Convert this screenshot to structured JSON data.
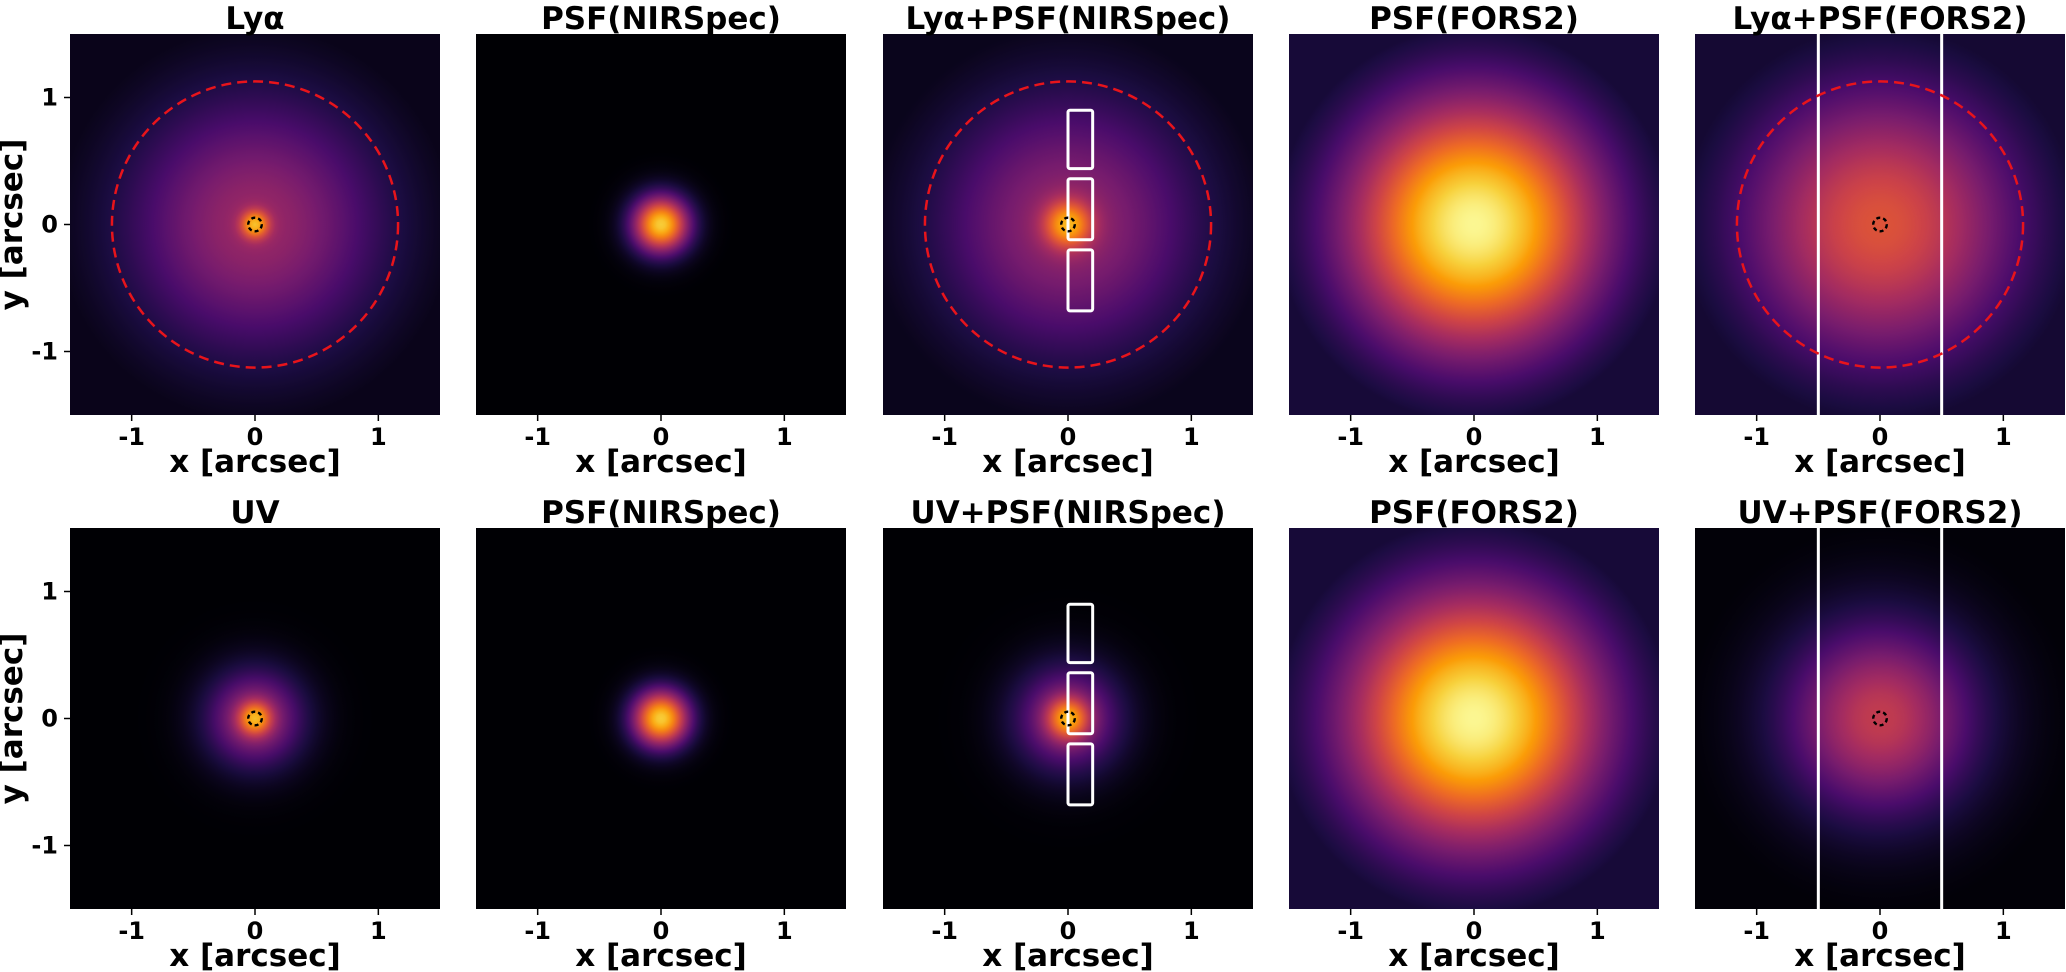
{
  "chart_data": {
    "type": "heatmap",
    "layout": {
      "rows": 2,
      "cols": 5
    },
    "colormap": "inferno",
    "colormap_stops": [
      "#000004",
      "#1b0c41",
      "#4a0c6b",
      "#781c6d",
      "#a52c60",
      "#cf4446",
      "#ed6925",
      "#fb9b06",
      "#f7d13d",
      "#fcffa4"
    ],
    "xlabel": "x [arcsec]",
    "ylabel": "y [arcsec]",
    "xlim": [
      -1.5,
      1.5
    ],
    "ylim": [
      -1.5,
      1.5
    ],
    "xticks": [
      -1,
      0,
      1
    ],
    "xtick_labels": [
      "-1",
      "0",
      "1"
    ],
    "yticks": [
      -1,
      0,
      1
    ],
    "ytick_labels": [
      "-1",
      "0",
      "1"
    ],
    "panels": [
      {
        "title": "Lyα",
        "components": [
          {
            "sigma": 0.07,
            "weight": 1.0
          },
          {
            "sigma": 0.55,
            "weight": 0.36
          }
        ],
        "peak_level": 0.86,
        "circles": [
          {
            "r": 1.16,
            "style": "dashed",
            "color": "#e8141b"
          },
          {
            "r": 0.055,
            "style": "dashed",
            "color": "#000000"
          }
        ]
      },
      {
        "title": "PSF(NIRSpec)",
        "components": [
          {
            "sigma": 0.12,
            "weight": 1.0
          }
        ],
        "peak_level": 0.88,
        "circles": []
      },
      {
        "title": "Lyα+PSF(NIRSpec)",
        "components": [
          {
            "sigma": 0.12,
            "weight": 1.0
          },
          {
            "sigma": 0.56,
            "weight": 0.36
          }
        ],
        "peak_level": 0.84,
        "circles": [
          {
            "r": 1.16,
            "style": "dashed",
            "color": "#e8141b"
          },
          {
            "r": 0.055,
            "style": "dashed",
            "color": "#000000"
          }
        ],
        "slitlets": [
          {
            "x0": 0.0,
            "x1": 0.2,
            "y0": 0.44,
            "y1": 0.9
          },
          {
            "x0": 0.0,
            "x1": 0.2,
            "y0": -0.12,
            "y1": 0.36
          },
          {
            "x0": 0.0,
            "x1": 0.2,
            "y0": -0.68,
            "y1": -0.2
          }
        ]
      },
      {
        "title": "PSF(FORS2)",
        "components": [
          {
            "sigma": 0.55,
            "weight": 1.0
          }
        ],
        "peak_level": 0.98,
        "circles": []
      },
      {
        "title": "Lyα+PSF(FORS2)",
        "components": [
          {
            "sigma": 0.6,
            "weight": 1.0
          }
        ],
        "peak_level": 0.6,
        "circles": [
          {
            "r": 1.16,
            "style": "dashed",
            "color": "#e8141b"
          },
          {
            "r": 0.055,
            "style": "dashed",
            "color": "#000000"
          }
        ],
        "slit_lines_x": [
          -0.5,
          0.5
        ]
      },
      {
        "title": "UV",
        "components": [
          {
            "sigma": 0.08,
            "weight": 1.0
          },
          {
            "sigma": 0.2,
            "weight": 0.45
          }
        ],
        "peak_level": 0.85,
        "circles": [
          {
            "r": 0.055,
            "style": "dashed",
            "color": "#000000"
          }
        ]
      },
      {
        "title": "PSF(NIRSpec)",
        "components": [
          {
            "sigma": 0.12,
            "weight": 1.0
          }
        ],
        "peak_level": 0.88,
        "circles": []
      },
      {
        "title": "UV+PSF(NIRSpec)",
        "components": [
          {
            "sigma": 0.1,
            "weight": 1.0
          },
          {
            "sigma": 0.22,
            "weight": 0.4
          }
        ],
        "peak_level": 0.84,
        "circles": [
          {
            "r": 0.055,
            "style": "dashed",
            "color": "#000000"
          }
        ],
        "slitlets": [
          {
            "x0": 0.0,
            "x1": 0.2,
            "y0": 0.44,
            "y1": 0.9
          },
          {
            "x0": 0.0,
            "x1": 0.2,
            "y0": -0.12,
            "y1": 0.36
          },
          {
            "x0": 0.0,
            "x1": 0.2,
            "y0": -0.68,
            "y1": -0.2
          }
        ]
      },
      {
        "title": "PSF(FORS2)",
        "components": [
          {
            "sigma": 0.55,
            "weight": 1.0
          }
        ],
        "peak_level": 0.98,
        "circles": []
      },
      {
        "title": "UV+PSF(FORS2)",
        "components": [
          {
            "sigma": 0.4,
            "weight": 1.0
          }
        ],
        "peak_level": 0.52,
        "circles": [
          {
            "r": 0.055,
            "style": "dashed",
            "color": "#000000"
          }
        ],
        "slit_lines_x": [
          -0.5,
          0.5
        ]
      }
    ]
  }
}
